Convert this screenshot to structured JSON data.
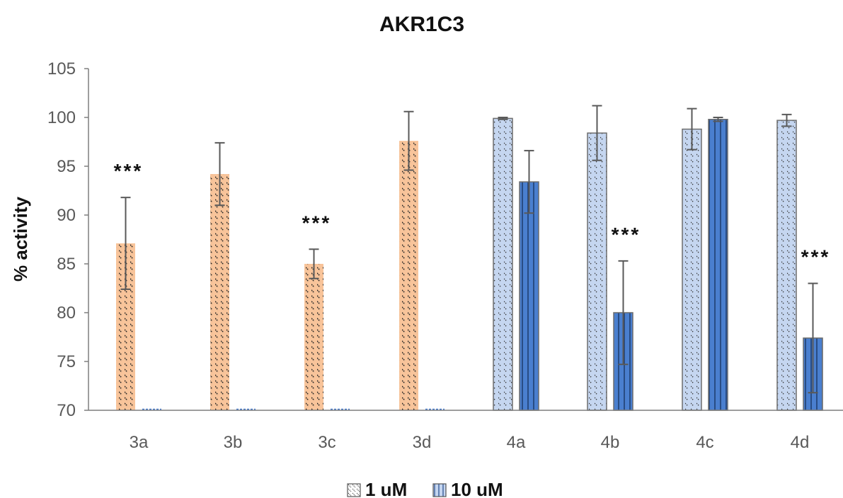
{
  "chart_data": {
    "type": "bar",
    "title": "AKR1C3",
    "xlabel": "",
    "ylabel": "% activity",
    "ylim": [
      70,
      105
    ],
    "yticks": [
      70,
      75,
      80,
      85,
      90,
      95,
      100,
      105
    ],
    "categories": [
      "3a",
      "3b",
      "3c",
      "3d",
      "4a",
      "4b",
      "4c",
      "4d"
    ],
    "series": [
      {
        "name": "1 uM",
        "values": [
          87.1,
          94.2,
          85.0,
          97.6,
          99.9,
          98.4,
          98.8,
          99.7
        ],
        "errors": [
          4.7,
          3.2,
          1.5,
          3.0,
          0.1,
          2.8,
          2.1,
          0.6
        ]
      },
      {
        "name": "10 uM",
        "values": [
          null,
          null,
          null,
          null,
          93.4,
          80.0,
          99.8,
          77.4
        ],
        "errors": [
          null,
          null,
          null,
          null,
          3.2,
          5.3,
          0.2,
          5.6
        ]
      }
    ],
    "significance": [
      {
        "category": "3a",
        "label": "***"
      },
      {
        "category": "3c",
        "label": "***"
      },
      {
        "category": "4b",
        "label": "***"
      },
      {
        "category": "4d",
        "label": "***"
      }
    ],
    "colors": {
      "orange_fill": "#f8c49a",
      "light_blue_fill": "#c5d6f0",
      "dark_blue_fill": "#4a7fcf",
      "bar_outline": "#6d6d6d",
      "hatch": "#222222",
      "axis": "#7f7f7f",
      "error_bar": "#595959"
    },
    "grid": false,
    "legend_position": "bottom-center"
  }
}
